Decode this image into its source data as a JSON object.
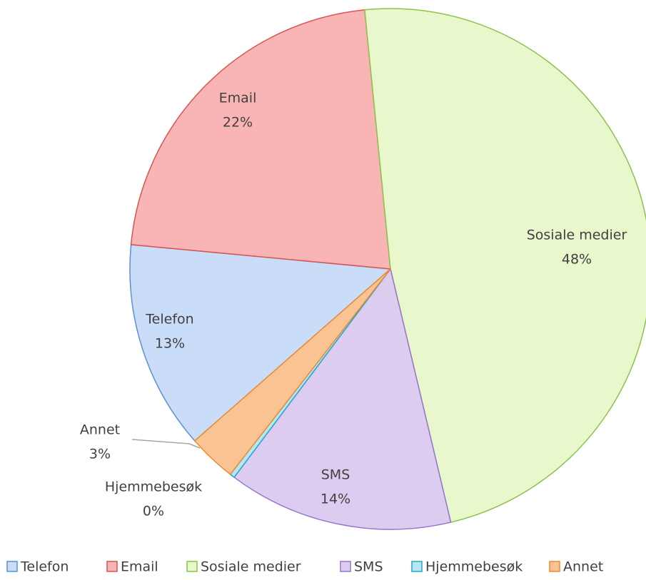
{
  "chart_data": {
    "type": "pie",
    "categories": [
      "Telefon",
      "Email",
      "Sosiale medier",
      "SMS",
      "Hjemmebesøk",
      "Annet"
    ],
    "values": [
      13,
      22,
      48,
      14,
      0.3,
      3
    ],
    "value_labels": [
      "13%",
      "22%",
      "48%",
      "14%",
      "0%",
      "3%"
    ],
    "colors": [
      "#c9dcf8",
      "#f9b5b5",
      "#e8f8cc",
      "#dccdf0",
      "#b5e6f2",
      "#f9c393"
    ],
    "legend": "bottom"
  }
}
